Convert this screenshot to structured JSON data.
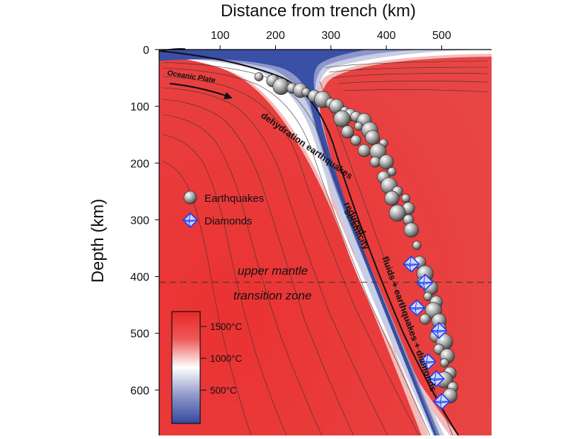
{
  "figure": {
    "x_axis_title": "Distance from trench (km)",
    "y_axis_title": "Depth (km)",
    "x_ticks": [
      "100",
      "200",
      "300",
      "400",
      "500"
    ],
    "y_ticks": [
      "0",
      "100",
      "200",
      "300",
      "400",
      "500",
      "600"
    ],
    "labels": {
      "oceanic_plate": "Oceanic Plate",
      "dehydration": "dehydration earthquakes",
      "reduced": "reduced",
      "seismicity": "seismicity",
      "fluids": "fluids + earthquakes + diamonds",
      "upper_mantle": "upper mantle",
      "transition_zone": "transition zone"
    },
    "legend": {
      "earthquakes": "Earthquakes",
      "diamonds": "Diamonds"
    },
    "colorbar": {
      "ticks": [
        "1500°C",
        "1000°C",
        "500°C"
      ],
      "colors": {
        "hot": "#e8282a",
        "mid": "#ffffff",
        "cold": "#3548a0"
      }
    },
    "colors": {
      "mantle": "#e83a36",
      "slab_cold": "#3a4fa6",
      "earthquake": "#9a9a9a",
      "diamond": "#1d3cf0",
      "text": "#111111"
    }
  },
  "chart_data": {
    "type": "scatter",
    "xlabel": "Distance from trench (km)",
    "ylabel": "Depth (km)",
    "xlim": [
      -10,
      590
    ],
    "ylim": [
      0,
      680
    ],
    "series": [
      {
        "name": "Earthquakes",
        "points": [
          [
            170,
            48
          ],
          [
            195,
            55
          ],
          [
            210,
            65
          ],
          [
            230,
            68
          ],
          [
            245,
            72
          ],
          [
            255,
            75
          ],
          [
            270,
            82
          ],
          [
            285,
            88
          ],
          [
            300,
            95
          ],
          [
            310,
            100
          ],
          [
            325,
            108
          ],
          [
            335,
            115
          ],
          [
            320,
            122
          ],
          [
            345,
            118
          ],
          [
            360,
            125
          ],
          [
            350,
            135
          ],
          [
            330,
            145
          ],
          [
            370,
            142
          ],
          [
            345,
            160
          ],
          [
            375,
            155
          ],
          [
            395,
            165
          ],
          [
            360,
            178
          ],
          [
            385,
            180
          ],
          [
            380,
            198
          ],
          [
            400,
            198
          ],
          [
            410,
            215
          ],
          [
            395,
            225
          ],
          [
            405,
            240
          ],
          [
            420,
            250
          ],
          [
            410,
            262
          ],
          [
            435,
            262
          ],
          [
            440,
            280
          ],
          [
            420,
            288
          ],
          [
            440,
            300
          ],
          [
            445,
            318
          ],
          [
            455,
            345
          ],
          [
            460,
            375
          ],
          [
            470,
            395
          ],
          [
            465,
            410
          ],
          [
            480,
            420
          ],
          [
            475,
            435
          ],
          [
            490,
            445
          ],
          [
            485,
            460
          ],
          [
            470,
            475
          ],
          [
            495,
            478
          ],
          [
            500,
            490
          ],
          [
            490,
            505
          ],
          [
            505,
            515
          ],
          [
            495,
            528
          ],
          [
            510,
            540
          ],
          [
            505,
            552
          ],
          [
            515,
            570
          ],
          [
            505,
            582
          ],
          [
            520,
            595
          ],
          [
            515,
            610
          ]
        ]
      },
      {
        "name": "Diamonds",
        "points": [
          [
            445,
            378
          ],
          [
            470,
            410
          ],
          [
            455,
            455
          ],
          [
            495,
            495
          ],
          [
            475,
            550
          ],
          [
            490,
            580
          ],
          [
            500,
            620
          ]
        ]
      }
    ]
  }
}
